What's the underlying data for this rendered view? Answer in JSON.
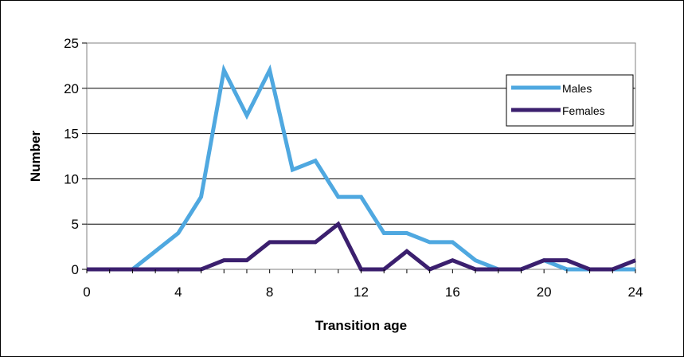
{
  "chart_data": {
    "type": "line",
    "xlabel": "Transition age",
    "ylabel": "Number",
    "xlim": [
      0,
      24
    ],
    "ylim": [
      0,
      25
    ],
    "xticks": [
      0,
      4,
      8,
      12,
      16,
      20,
      24
    ],
    "yticks": [
      0,
      5,
      10,
      15,
      20,
      25
    ],
    "grid": "horizontal",
    "legend_position": "top-right",
    "x": [
      0,
      1,
      2,
      3,
      4,
      5,
      6,
      7,
      8,
      9,
      10,
      11,
      12,
      13,
      14,
      15,
      16,
      17,
      18,
      19,
      20,
      21,
      22,
      23,
      24
    ],
    "series": [
      {
        "name": "Males",
        "color": "#4fa8e0",
        "values": [
          0,
          0,
          0,
          2,
          4,
          8,
          22,
          17,
          22,
          11,
          12,
          8,
          8,
          4,
          4,
          3,
          3,
          1,
          0,
          0,
          1,
          0,
          0,
          0,
          0
        ]
      },
      {
        "name": "Females",
        "color": "#3b1f6e",
        "values": [
          0,
          0,
          0,
          0,
          0,
          0,
          1,
          1,
          3,
          3,
          3,
          5,
          0,
          0,
          2,
          0,
          1,
          0,
          0,
          0,
          1,
          1,
          0,
          0,
          1
        ]
      }
    ]
  }
}
